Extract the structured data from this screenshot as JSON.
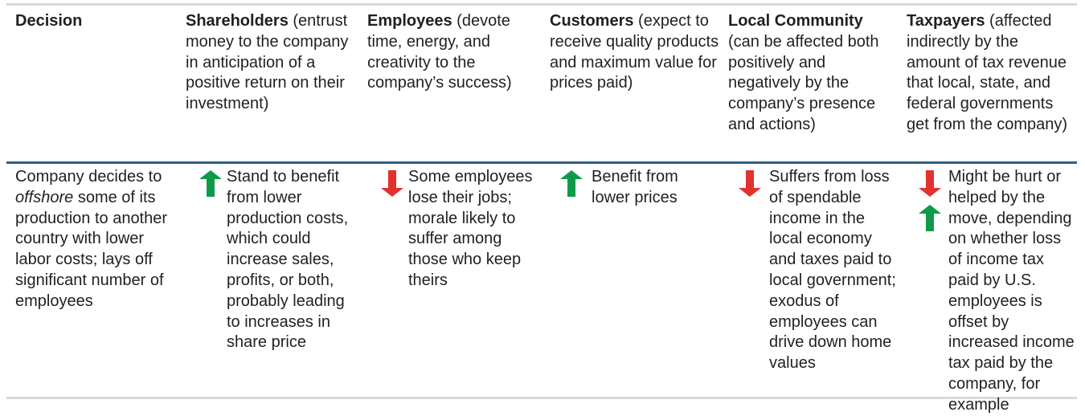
{
  "header": {
    "decision": "Decision",
    "shareholders": {
      "title": "Shareholders",
      "desc": "(entrust money to the company in anticipation of a positive return on their investment)"
    },
    "employees": {
      "title": "Employees",
      "desc": "(devote time, energy, and creativity to the company’s success)"
    },
    "customers": {
      "title": "Customers",
      "desc": "(expect to receive quality products and maximum value for prices paid)"
    },
    "community": {
      "title": "Local Community",
      "desc": "(can be affected both positively and negatively by the company’s presence and actions)"
    },
    "taxpayers": {
      "title": "Taxpayers",
      "desc": "(affected indirectly by the amount of tax revenue that local, state, and federal governments get from the company)"
    }
  },
  "row": {
    "decision": {
      "pre": "Company decides to ",
      "em": "offshore",
      "post": " some of its production to another country with lower labor costs; lays off significant number of employees"
    },
    "shareholders": "Stand to benefit from lower production costs, which could increase sales, profits, or both, probably leading to increases in share price",
    "employees": "Some employees lose their jobs; morale likely to suffer among those who keep theirs",
    "customers": "Benefit from lower prices",
    "community": "Suffers from loss of spendable income in the local economy and taxes paid to local government; exodus of employees can drive down home values",
    "taxpayers": "Might be hurt or helped by the move, depending on whether loss of income tax paid by U.S. employees is offset by increased income tax paid by the company, for example"
  },
  "icons": {
    "shareholders": "arrow-up-icon",
    "employees": "arrow-down-icon",
    "customers": "arrow-up-icon",
    "community": "arrow-down-icon",
    "taxpayers": [
      "arrow-down-icon",
      "arrow-up-icon"
    ]
  },
  "colors": {
    "up": "#0f9a48",
    "down": "#e3312f",
    "header_rule": "#2f5f86",
    "rule": "#d9d9d9"
  }
}
